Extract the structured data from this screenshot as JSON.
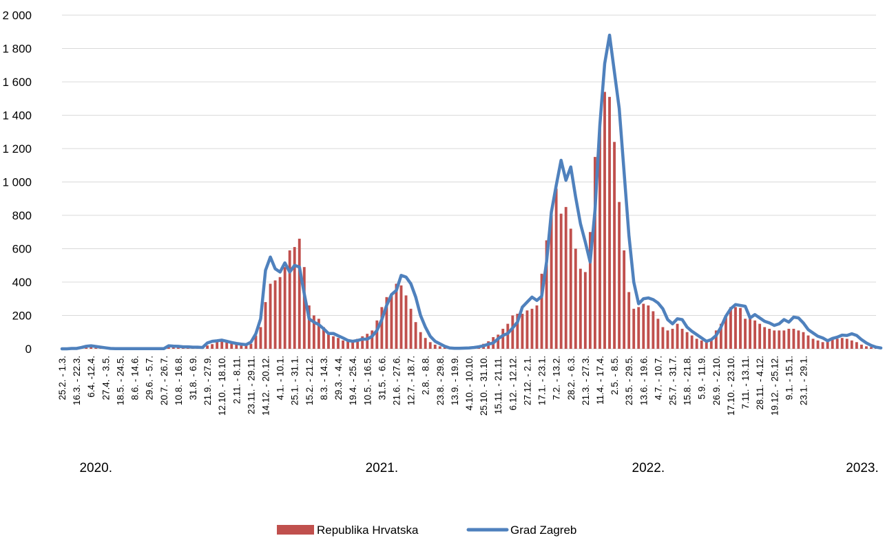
{
  "chart_data": {
    "type": "bar",
    "title": "",
    "xlabel": "",
    "ylabel": "",
    "ylim": [
      0,
      2000
    ],
    "yticks": [
      0,
      200,
      400,
      600,
      800,
      1000,
      1200,
      1400,
      1600,
      1800,
      2000
    ],
    "ytick_labels": [
      "0",
      "200",
      "400",
      "600",
      "800",
      "1 000",
      "1 200",
      "1 400",
      "1 600",
      "1 800",
      "2 000"
    ],
    "grid": true,
    "legend_position": "bottom",
    "x_tick_labels": [
      "25.2. - 1.3.",
      "16.3. - 22.3.",
      "6.4. -12.4.",
      "27.4. - 3.5.",
      "18.5. - 24.5.",
      "8.6. - 14.6.",
      "29.6. - 5.7.",
      "20.7. - 26.7.",
      "10.8. - 16.8.",
      "31.8. - 6.9.",
      "21.9. - 27.9.",
      "12.10. - 18.10.",
      "2.11. - 8.11.",
      "23.11. - 29.11.",
      "14.12. - 20.12.",
      "4.1. - 10.1.",
      "25.1. - 31.1.",
      "15.2. - 21.2.",
      "8.3. - 14.3.",
      "29.3. - 4.4.",
      "19.4. - 25.4.",
      "10.5. - 16.5.",
      "31.5. - 6.6.",
      "21.6. - 27.6.",
      "12.7. - 18.7.",
      "2.8. - 8.8.",
      "23.8. - 29.8.",
      "13.9. - 19.9.",
      "4.10. - 10.10.",
      "25.10. - 31.10.",
      "15.11. - 21.11.",
      "6.12. - 12.12.",
      "27.12. - 2.1.",
      "17.1. - 23.1.",
      "7.2. - 13.2.",
      "28.2. - 6.3.",
      "21.3. - 27.3.",
      "11.4. - 17.4.",
      "2.5. - 8.5.",
      "23.5. - 29.5.",
      "13.6. - 19.6.",
      "4.7. - 10.7.",
      "25.7. - 31.7.",
      "15.8. - 21.8.",
      "5.9. - 11.9.",
      "26.9. - 2.10.",
      "17.10. - 23.10.",
      "7.11. - 13.11.",
      "28.11. - 4.12.",
      "19.12. - 25.12.",
      "9.1. - 15.1.",
      "23.1. - 29.1."
    ],
    "years": [
      {
        "label": "2020.",
        "at_week": 7
      },
      {
        "label": "2021.",
        "at_week": 66
      },
      {
        "label": "2022.",
        "at_week": 121
      },
      {
        "label": "2023.",
        "at_week": 167
      }
    ],
    "series": [
      {
        "name": "Republika Hrvatska",
        "type": "bar",
        "color": "#c0504d",
        "values": [
          0,
          0,
          0,
          5,
          12,
          14,
          10,
          8,
          6,
          3,
          2,
          1,
          1,
          1,
          1,
          1,
          1,
          1,
          1,
          1,
          2,
          2,
          15,
          14,
          12,
          10,
          10,
          8,
          8,
          6,
          20,
          28,
          40,
          45,
          38,
          32,
          25,
          22,
          20,
          30,
          80,
          130,
          280,
          390,
          410,
          430,
          490,
          590,
          610,
          660,
          490,
          260,
          200,
          180,
          130,
          95,
          75,
          65,
          50,
          45,
          50,
          60,
          75,
          90,
          110,
          170,
          250,
          310,
          325,
          390,
          380,
          320,
          240,
          160,
          100,
          65,
          40,
          25,
          15,
          8,
          5,
          5,
          6,
          8,
          10,
          15,
          20,
          30,
          45,
          70,
          85,
          120,
          150,
          200,
          210,
          210,
          230,
          240,
          260,
          450,
          650,
          800,
          960,
          810,
          850,
          720,
          600,
          480,
          460,
          700,
          1150,
          1340,
          1540,
          1510,
          1240,
          880,
          590,
          340,
          240,
          250,
          270,
          260,
          225,
          180,
          130,
          110,
          120,
          150,
          120,
          100,
          80,
          60,
          50,
          45,
          60,
          110,
          150,
          200,
          250,
          250,
          245,
          180,
          200,
          170,
          150,
          130,
          120,
          110,
          110,
          110,
          120,
          120,
          110,
          100,
          80,
          60,
          50,
          40,
          50,
          55,
          60,
          65,
          60,
          50,
          40,
          25,
          15,
          10,
          5
        ]
      },
      {
        "name": "Grad Zagreb",
        "type": "line",
        "color": "#4f81bd",
        "values": [
          0,
          0,
          2,
          2,
          8,
          15,
          18,
          14,
          10,
          6,
          2,
          1,
          1,
          1,
          1,
          1,
          1,
          1,
          1,
          1,
          1,
          1,
          18,
          16,
          15,
          12,
          12,
          10,
          10,
          8,
          35,
          45,
          48,
          52,
          45,
          38,
          32,
          28,
          25,
          40,
          90,
          180,
          470,
          550,
          480,
          460,
          515,
          460,
          500,
          490,
          330,
          180,
          160,
          145,
          120,
          92,
          92,
          78,
          65,
          50,
          45,
          50,
          58,
          58,
          75,
          110,
          175,
          260,
          325,
          350,
          440,
          430,
          390,
          310,
          200,
          130,
          75,
          45,
          30,
          15,
          5,
          3,
          3,
          4,
          5,
          8,
          12,
          18,
          28,
          35,
          60,
          80,
          92,
          125,
          160,
          250,
          280,
          310,
          290,
          315,
          520,
          820,
          980,
          1130,
          1010,
          1090,
          910,
          750,
          640,
          520,
          830,
          1340,
          1710,
          1880,
          1660,
          1440,
          1060,
          680,
          400,
          270,
          300,
          305,
          295,
          275,
          240,
          175,
          150,
          180,
          175,
          130,
          105,
          85,
          65,
          45,
          55,
          80,
          130,
          195,
          240,
          265,
          260,
          255,
          185,
          205,
          185,
          165,
          155,
          140,
          150,
          175,
          160,
          190,
          185,
          155,
          115,
          95,
          75,
          65,
          48,
          62,
          70,
          82,
          80,
          90,
          80,
          55,
          35,
          20,
          10,
          5
        ]
      }
    ]
  },
  "legend": {
    "items": [
      {
        "label": "Republika Hrvatska",
        "color": "#c0504d"
      },
      {
        "label": "Grad Zagreb",
        "color": "#4f81bd"
      }
    ]
  }
}
